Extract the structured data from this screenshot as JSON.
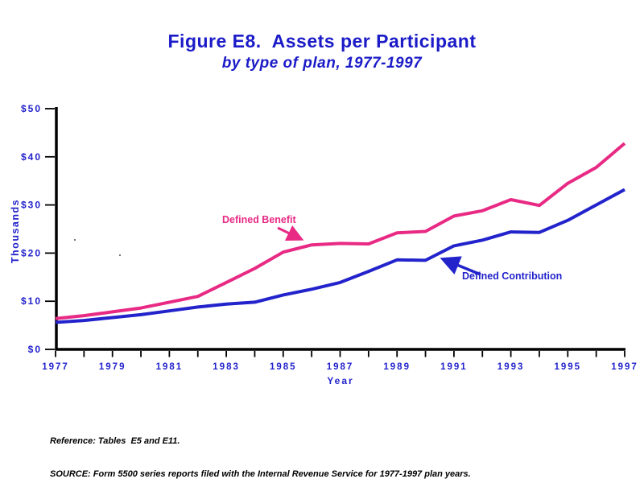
{
  "title": "Figure E8.  Assets per Participant",
  "subtitle": "by type of plan, 1977-1997",
  "footnotes": {
    "reference": "Reference: Tables  E5 and E11.",
    "source": "SOURCE: Form 5500 series reports filed with the Internal Revenue Service for 1977-1997 plan years."
  },
  "colors": {
    "background": "#FFFFFF",
    "title_blue": "#1B1BC8",
    "axis_text_blue": "#2222CC",
    "axis_line_black": "#000000",
    "defined_benefit_pink": "#E82A84",
    "defined_contribution_blue": "#2323CC"
  },
  "chart_data": {
    "type": "line",
    "title": "Figure E8. Assets per Participant",
    "subtitle": "by type of plan, 1977-1997",
    "xlabel": "Year",
    "ylabel": "Thousands",
    "xlim": [
      1977,
      1997
    ],
    "ylim": [
      0,
      50
    ],
    "grid": false,
    "legend_position": "inline-annotations",
    "y_tick_values": [
      0,
      10,
      20,
      30,
      40,
      50
    ],
    "y_tick_labels": [
      "$0",
      "$10",
      "$20",
      "$30",
      "$40",
      "$50"
    ],
    "x_tick_years": [
      1977,
      1978,
      1979,
      1980,
      1981,
      1982,
      1983,
      1984,
      1985,
      1986,
      1987,
      1988,
      1989,
      1990,
      1991,
      1992,
      1993,
      1994,
      1995,
      1996,
      1997
    ],
    "x_label_years": [
      1977,
      1979,
      1981,
      1983,
      1985,
      1987,
      1989,
      1991,
      1993,
      1995,
      1997
    ],
    "x": [
      1977,
      1978,
      1979,
      1980,
      1981,
      1982,
      1983,
      1984,
      1985,
      1986,
      1987,
      1988,
      1989,
      1990,
      1991,
      1992,
      1993,
      1994,
      1995,
      1996,
      1997
    ],
    "series": [
      {
        "name": "Defined Benefit",
        "color": "#E82A84",
        "values": [
          6.4,
          7.0,
          7.8,
          8.6,
          9.8,
          11.0,
          13.9,
          16.8,
          20.2,
          21.7,
          22.0,
          21.9,
          24.2,
          24.5,
          27.7,
          28.8,
          31.1,
          29.9,
          34.5,
          37.8,
          42.8
        ]
      },
      {
        "name": "Defined Contribution",
        "color": "#2323CC",
        "values": [
          5.6,
          6.0,
          6.6,
          7.2,
          8.0,
          8.8,
          9.4,
          9.8,
          11.3,
          12.5,
          13.9,
          16.2,
          18.6,
          18.5,
          21.5,
          22.7,
          24.4,
          24.3,
          26.8,
          30.0,
          33.2
        ]
      }
    ]
  }
}
